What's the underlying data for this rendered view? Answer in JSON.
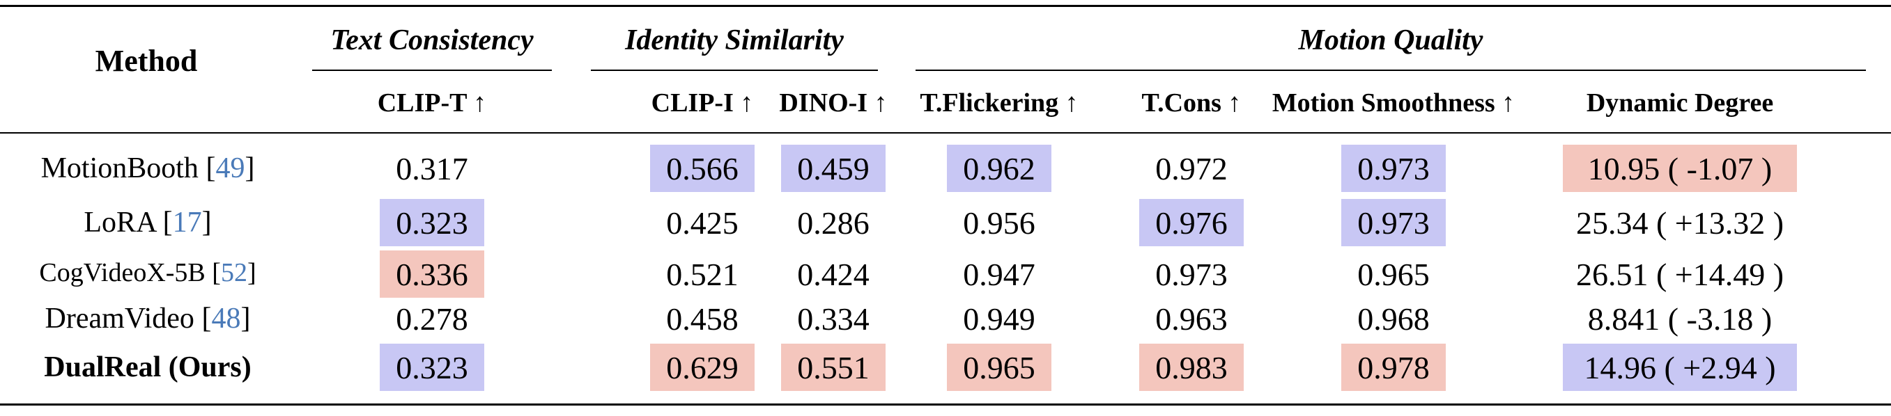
{
  "header": {
    "method": "Method",
    "groups": [
      "Text Consistency",
      "Identity Similarity",
      "Motion Quality"
    ],
    "columns": [
      "CLIP-T ↑",
      "CLIP-I ↑",
      "DINO-I ↑",
      "T.Flickering ↑",
      "T.Cons ↑",
      "Motion Smoothness ↑",
      "Dynamic Degree"
    ]
  },
  "rows": [
    {
      "method": "MotionBooth",
      "ref": "49",
      "bold": false,
      "values": [
        "0.317",
        "0.566",
        "0.459",
        "0.962",
        "0.972",
        "0.973",
        "10.95 ( -1.07 )"
      ],
      "highlight": [
        "",
        "blue",
        "blue",
        "blue",
        "",
        "blue",
        "red"
      ]
    },
    {
      "method": "LoRA",
      "ref": "17",
      "bold": false,
      "values": [
        "0.323",
        "0.425",
        "0.286",
        "0.956",
        "0.976",
        "0.973",
        "25.34 ( +13.32 )"
      ],
      "highlight": [
        "blue",
        "",
        "",
        "",
        "blue",
        "blue",
        ""
      ]
    },
    {
      "method": "CogVideoX-5B",
      "ref": "52",
      "bold": false,
      "values": [
        "0.336",
        "0.521",
        "0.424",
        "0.947",
        "0.973",
        "0.965",
        "26.51 ( +14.49 )"
      ],
      "highlight": [
        "red",
        "",
        "",
        "",
        "",
        "",
        ""
      ]
    },
    {
      "method": "DreamVideo",
      "ref": "48",
      "bold": false,
      "values": [
        "0.278",
        "0.458",
        "0.334",
        "0.949",
        "0.963",
        "0.968",
        "8.841 ( -3.18 )"
      ],
      "highlight": [
        "",
        "",
        "",
        "",
        "",
        "",
        ""
      ]
    },
    {
      "method": "DualReal (Ours)",
      "ref": "",
      "bold": true,
      "values": [
        "0.323",
        "0.629",
        "0.551",
        "0.965",
        "0.983",
        "0.978",
        "14.96 ( +2.94 )"
      ],
      "highlight": [
        "blue",
        "red",
        "red",
        "red",
        "red",
        "red",
        "blue"
      ]
    }
  ],
  "colors": {
    "blue_highlight": "#c8c7f4",
    "red_highlight": "#f4c6bd",
    "citation": "#4a7ab8"
  }
}
